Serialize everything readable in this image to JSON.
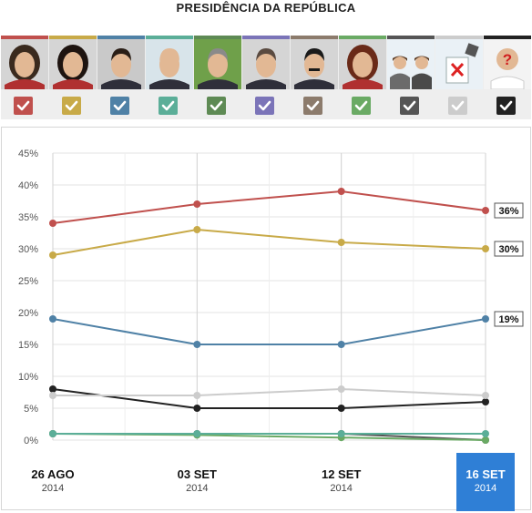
{
  "header": {
    "title": "PRESIDÊNCIA DA REPÚBLICA"
  },
  "candidates": [
    {
      "color": "#c0504d",
      "icon": "candidate-photo-woman-short-hair",
      "checked": true
    },
    {
      "color": "#c8aa48",
      "icon": "candidate-photo-woman-dark-hair",
      "checked": true
    },
    {
      "color": "#4f81a6",
      "icon": "candidate-photo-man-suit",
      "checked": true
    },
    {
      "color": "#5bae98",
      "icon": "candidate-photo-man-bald",
      "checked": true
    },
    {
      "color": "#5e8a54",
      "icon": "candidate-photo-man-grey-hair",
      "checked": true
    },
    {
      "color": "#7b74b8",
      "icon": "candidate-photo-man-older",
      "checked": true
    },
    {
      "color": "#8c7b6c",
      "icon": "candidate-photo-man-mustache",
      "checked": true
    },
    {
      "color": "#6aaa64",
      "icon": "candidate-photo-woman-curly-hair",
      "checked": true
    },
    {
      "color": "#555555",
      "icon": "others-group-icon",
      "checked": true
    },
    {
      "color": "#cccccc",
      "icon": "null-vote-ballot-icon",
      "checked": true
    },
    {
      "color": "#222222",
      "icon": "undecided-question-icon",
      "checked": true
    }
  ],
  "chart_data": {
    "type": "line",
    "x": [
      "26 AGO",
      "03 SET",
      "12 SET",
      "16 SET"
    ],
    "x_years": [
      "2014",
      "2014",
      "2014",
      "2014"
    ],
    "selected_x": "16 SET",
    "ylim": [
      0,
      45
    ],
    "yticks": [
      "0%",
      "5%",
      "10%",
      "15%",
      "20%",
      "25%",
      "30%",
      "35%",
      "40%",
      "45%"
    ],
    "grid": true,
    "series": [
      {
        "color": "#c0504d",
        "values": [
          34,
          37,
          39,
          36
        ],
        "end_label": "36%"
      },
      {
        "color": "#c8aa48",
        "values": [
          29,
          33,
          31,
          30
        ],
        "end_label": "30%"
      },
      {
        "color": "#4f81a6",
        "values": [
          19,
          15,
          15,
          19
        ],
        "end_label": "19%"
      },
      {
        "color": "#cccccc",
        "values": [
          7,
          7,
          8,
          7
        ]
      },
      {
        "color": "#222222",
        "values": [
          8,
          5,
          5,
          6
        ]
      },
      {
        "color": "#5bae98",
        "values": [
          1,
          1,
          1,
          1
        ]
      },
      {
        "color": "#6aaa64",
        "values": [
          1,
          0.8,
          0.4,
          0
        ]
      },
      {
        "color": "#555555",
        "values": [
          1,
          1,
          1,
          0
        ]
      }
    ]
  }
}
